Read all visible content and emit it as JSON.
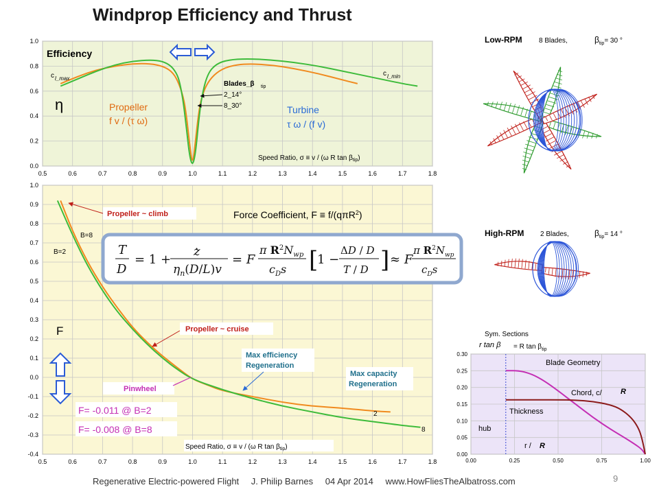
{
  "title": "Windprop Efficiency and Thrust",
  "footer": {
    "left": "Regenerative Electric-powered Flight",
    "author": "J. Philip Barnes",
    "date": "04 Apr 2014",
    "site": "www.HowFliesTheAlbatross.com"
  },
  "page_number": "9",
  "colors": {
    "orange": "#f08a1e",
    "green": "#3dbb3a",
    "magenta": "#c42fb4",
    "darkred": "#8b1a1a",
    "panel_top": "#eff4d8",
    "panel_bottom": "#fbf7d4",
    "panel_blade": "#ece4f8"
  },
  "chart_data": [
    {
      "type": "line",
      "title": "Efficiency",
      "xlabel": "Speed Ratio, σ ≡ v / (ω R tan β",
      "xlabel_sub": "tip",
      "xlabel_close": ")",
      "xlim": [
        0.5,
        1.8
      ],
      "ylim": [
        0.0,
        1.0
      ],
      "xticks": [
        "0.5",
        "0.6",
        "0.7",
        "0.8",
        "0.9",
        "1.0",
        "1.1",
        "1.2",
        "1.3",
        "1.4",
        "1.5",
        "1.6",
        "1.7",
        "1.8"
      ],
      "yticks": [
        "0.0",
        "0.2",
        "0.4",
        "0.6",
        "0.8",
        "1.0"
      ],
      "series": [
        {
          "name": "2_14°",
          "color": "orange",
          "x": [
            0.56,
            0.62,
            0.68,
            0.74,
            0.8,
            0.86,
            0.9,
            0.93,
            0.95,
            0.97,
            0.98,
            0.99,
            1.0,
            1.01,
            1.02,
            1.03,
            1.05,
            1.08,
            1.12,
            1.18,
            1.26,
            1.34,
            1.42,
            1.5,
            1.55
          ],
          "y": [
            0.66,
            0.72,
            0.77,
            0.8,
            0.82,
            0.82,
            0.8,
            0.76,
            0.69,
            0.55,
            0.4,
            0.18,
            0.0,
            0.2,
            0.42,
            0.55,
            0.67,
            0.75,
            0.8,
            0.82,
            0.81,
            0.78,
            0.74,
            0.69,
            0.66
          ]
        },
        {
          "name": "8_30°",
          "color": "green",
          "x": [
            0.56,
            0.62,
            0.68,
            0.74,
            0.8,
            0.86,
            0.9,
            0.93,
            0.95,
            0.96,
            0.97,
            0.98,
            0.99,
            1.0,
            1.01,
            1.02,
            1.03,
            1.05,
            1.08,
            1.12,
            1.18,
            1.26,
            1.34,
            1.42,
            1.5,
            1.6,
            1.7,
            1.75
          ],
          "y": [
            0.64,
            0.7,
            0.76,
            0.81,
            0.84,
            0.85,
            0.84,
            0.8,
            0.73,
            0.64,
            0.5,
            0.3,
            0.08,
            0.0,
            0.1,
            0.35,
            0.55,
            0.74,
            0.82,
            0.85,
            0.86,
            0.85,
            0.83,
            0.8,
            0.76,
            0.71,
            0.66,
            0.64
          ]
        }
      ],
      "annotations": {
        "cl_max": "c",
        "cl_max_sub": "l_max",
        "cl_min": "c",
        "cl_min_sub": "l_min",
        "eta": "η",
        "propeller": "Propeller",
        "propeller_formula": "f v / (τ ω)",
        "turbine": "Turbine",
        "turbine_formula": "τ ω / (f v)",
        "blades_label": "Blades_β",
        "blades_sub": "tip",
        "blade_2": "2_14°",
        "blade_8": "8_30°"
      }
    },
    {
      "type": "line",
      "title": "Force Coefficient, F ≡ f/(qπR",
      "title_sup": "2",
      "title_close": ")",
      "xlabel": "Speed Ratio, σ ≡ v / (ω R tan β",
      "xlabel_sub": "tip",
      "xlabel_close": ")",
      "ylabel": "F",
      "xlim": [
        0.5,
        1.8
      ],
      "ylim": [
        -0.4,
        1.0
      ],
      "xticks": [
        "0.5",
        "0.6",
        "0.7",
        "0.8",
        "0.9",
        "1.0",
        "1.1",
        "1.2",
        "1.3",
        "1.4",
        "1.5",
        "1.6",
        "1.7",
        "1.8"
      ],
      "yticks": [
        "-0.4",
        "-0.3",
        "-0.2",
        "-0.1",
        "0.0",
        "0.1",
        "0.2",
        "0.3",
        "0.4",
        "0.5",
        "0.6",
        "0.7",
        "0.8",
        "0.9",
        "1.0"
      ],
      "series": [
        {
          "name": "2",
          "color": "orange",
          "x": [
            0.56,
            0.6,
            0.65,
            0.7,
            0.75,
            0.8,
            0.85,
            0.9,
            0.95,
            1.0,
            1.05,
            1.1,
            1.2,
            1.3,
            1.4,
            1.5,
            1.6,
            1.66
          ],
          "y": [
            0.92,
            0.76,
            0.6,
            0.47,
            0.36,
            0.26,
            0.18,
            0.11,
            0.05,
            -0.01,
            -0.04,
            -0.07,
            -0.1,
            -0.13,
            -0.15,
            -0.16,
            -0.175,
            -0.18
          ]
        },
        {
          "name": "8",
          "color": "green",
          "x": [
            0.55,
            0.6,
            0.65,
            0.7,
            0.75,
            0.8,
            0.85,
            0.9,
            0.95,
            1.0,
            1.1,
            1.2,
            1.3,
            1.4,
            1.5,
            1.6,
            1.7,
            1.76
          ],
          "y": [
            0.92,
            0.74,
            0.58,
            0.45,
            0.34,
            0.25,
            0.17,
            0.1,
            0.04,
            -0.01,
            -0.065,
            -0.11,
            -0.15,
            -0.18,
            -0.21,
            -0.23,
            -0.25,
            -0.26
          ]
        }
      ],
      "annotations": {
        "propeller_climb": "Propeller ~ climb",
        "propeller_cruise": "Propeller ~ cruise",
        "pinwheel": "Pinwheel",
        "max_eff_1": "Max efficiency",
        "max_eff_2": "Regeneration",
        "max_cap_1": "Max capacity",
        "max_cap_2": "Regeneration",
        "b8": "B=8",
        "b2": "B=2",
        "f_b2": "F= -0.011 @ B=2",
        "f_b8": "F= -0.008 @ B=8"
      }
    },
    {
      "type": "line",
      "title": "Blade Geometry",
      "xlim": [
        0.0,
        1.0
      ],
      "ylim": [
        0.0,
        0.3
      ],
      "xticks": [
        "0.00",
        "0.25",
        "0.50",
        "0.75",
        "1.00"
      ],
      "yticks": [
        "0.00",
        "0.05",
        "0.10",
        "0.15",
        "0.20",
        "0.25",
        "0.30"
      ],
      "series": [
        {
          "name": "Chord",
          "color": "magenta",
          "x": [
            0.2,
            0.28,
            0.35,
            0.42,
            0.5,
            0.6,
            0.7,
            0.8,
            0.88,
            0.94,
            0.98,
            1.0
          ],
          "y": [
            0.25,
            0.25,
            0.24,
            0.22,
            0.19,
            0.15,
            0.11,
            0.075,
            0.05,
            0.03,
            0.015,
            0.0
          ]
        },
        {
          "name": "Thickness",
          "color": "darkred",
          "x": [
            0.2,
            0.3,
            0.4,
            0.5,
            0.6,
            0.7,
            0.8,
            0.86,
            0.92,
            0.96,
            0.98,
            1.0
          ],
          "y": [
            0.163,
            0.163,
            0.163,
            0.163,
            0.162,
            0.158,
            0.148,
            0.135,
            0.11,
            0.08,
            0.05,
            0.0
          ]
        }
      ],
      "annotations": {
        "sym": "Sym. Sections",
        "rtan": "r tan  β",
        "eq": "= R tan β",
        "eq_sub": "tip",
        "chord": "Chord, c/",
        "chord_r": "R",
        "thickness": "Thickness",
        "hub": "hub",
        "r_over": "r /",
        "r_over_r": "R"
      }
    }
  ],
  "equation": {
    "lhs": "T/D = 1 + ż/(η_n (D/L) v) = F · (π R² N_wp)/(c_D s) · [1 − (ΔD/D)/(T/D)] ≈ F · (π R² N_wp)/(c_D s)"
  },
  "rotors": {
    "low": {
      "label": "Low-RPM",
      "blades": "8 Blades,",
      "beta": "β",
      "beta_sub": "tip",
      "beta_val": "= 30 °"
    },
    "high": {
      "label": "High-RPM",
      "blades": "2 Blades,",
      "beta": "β",
      "beta_sub": "tip",
      "beta_val": "= 14 °"
    }
  }
}
